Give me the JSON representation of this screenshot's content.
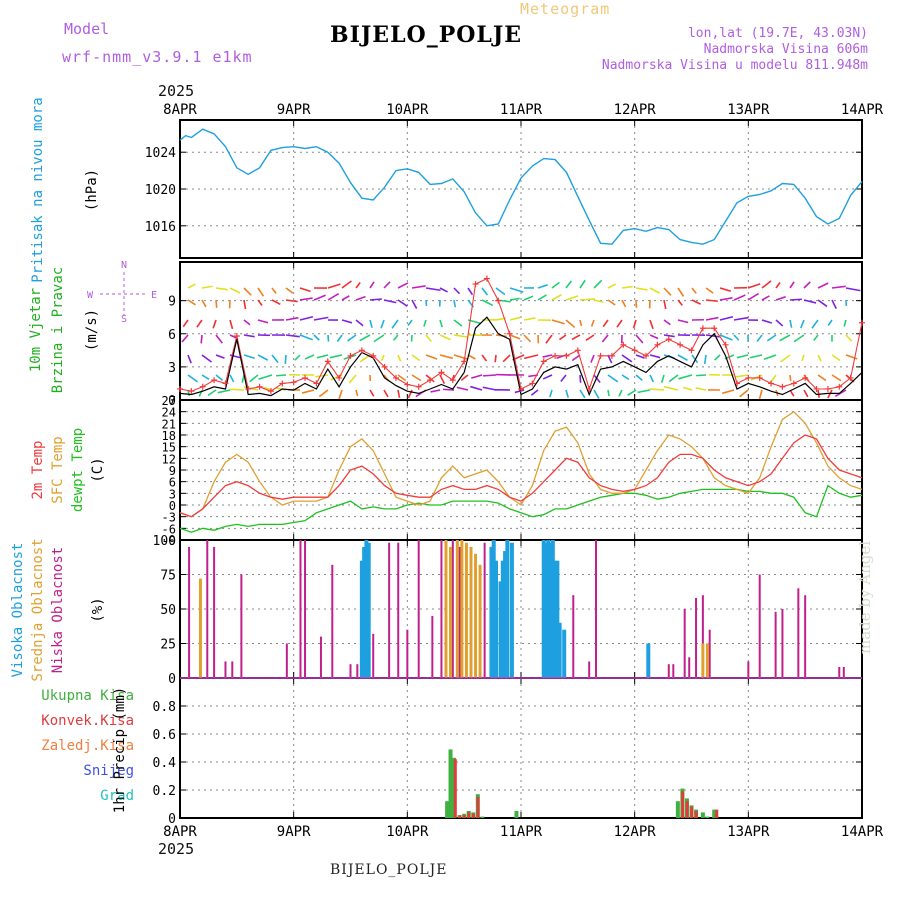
{
  "header": {
    "model_label": "Model",
    "model_name": "wrf-nmm_v3.9.1 e1km",
    "station_title": "BIJELO_POLJE",
    "meteogram_label": "Meteogram",
    "coords": "lon,lat (19.7E, 43.03N)",
    "elevation": "Nadmorska Visina 606m",
    "model_elevation": "Nadmorska Visina u modelu 811.948m"
  },
  "footer": {
    "station": "BIJELO_POLJE",
    "watermark": "made by Angel"
  },
  "colors": {
    "pressure": "#1ea0e0",
    "temp2m": "#f03c3c",
    "sfc": "#e0a030",
    "dewpt": "#20c020",
    "high_cloud": "#1ea0e0",
    "mid_cloud": "#e0a030",
    "low_cloud": "#c0208c",
    "total_precip": "#40b040",
    "conv_precip": "#e03c3c",
    "frz_precip": "#f08040",
    "snow": "#4050e0",
    "grad": "#20c0c0",
    "wind_speed": "#000000",
    "gust": "#f03c3c"
  },
  "chart_data": [
    {
      "type": "line",
      "panel": "pressure",
      "ylabel": [
        "Pritisak na nivou mora",
        "(hPa)"
      ],
      "ylim": [
        1012.5,
        1027.5
      ],
      "yticks": [
        1016,
        1020,
        1024
      ],
      "x": [
        0,
        0.05,
        0.1,
        0.2,
        0.3,
        0.4,
        0.5,
        0.6,
        0.7,
        0.8,
        0.9,
        1.0,
        1.1,
        1.2,
        1.3,
        1.4,
        1.5,
        1.6,
        1.7,
        1.8,
        1.9,
        2.0,
        2.1,
        2.2,
        2.3,
        2.4,
        2.5,
        2.6,
        2.7,
        2.8,
        2.9,
        3.0,
        3.1,
        3.2,
        3.3,
        3.4,
        3.5,
        3.6,
        3.7,
        3.8,
        3.9,
        4.0,
        4.1,
        4.2,
        4.3,
        4.4,
        4.5,
        4.6,
        4.7,
        4.8,
        4.9,
        5.0,
        5.1,
        5.2,
        5.3,
        5.4,
        5.5,
        5.6,
        5.7,
        5.8,
        5.9,
        6.0
      ],
      "series": [
        {
          "values": [
            1025.3,
            1025.8,
            1025.6,
            1026.5,
            1026.0,
            1024.6,
            1022.3,
            1021.6,
            1022.3,
            1024.2,
            1024.5,
            1024.6,
            1024.4,
            1024.6,
            1024.0,
            1022.8,
            1020.7,
            1019.0,
            1018.8,
            1020.2,
            1022.0,
            1022.2,
            1021.8,
            1020.5,
            1020.6,
            1021.1,
            1019.7,
            1017.4,
            1016.0,
            1016.2,
            1018.8,
            1021.2,
            1022.5,
            1023.3,
            1023.2,
            1021.8,
            1019.2,
            1016.6,
            1014.1,
            1014.0,
            1015.5,
            1015.7,
            1015.4,
            1015.8,
            1015.6,
            1014.5,
            1014.2,
            1014.0,
            1014.5,
            1016.5,
            1018.5,
            1019.2,
            1019.4,
            1019.8,
            1020.6,
            1020.5,
            1019.0,
            1017.0,
            1016.2,
            1016.8,
            1019.3,
            1020.8
          ]
        }
      ]
    },
    {
      "type": "line",
      "panel": "wind",
      "ylabel": [
        "10m Vjetar",
        "Brzina i Pravac",
        "(m/s)"
      ],
      "compass": {
        "n": "N",
        "s": "S",
        "w": "W",
        "e": "E"
      },
      "ylim": [
        0,
        12.5
      ],
      "yticks": [
        0,
        3,
        6,
        9
      ],
      "x": [
        0,
        0.1,
        0.2,
        0.3,
        0.4,
        0.5,
        0.6,
        0.7,
        0.8,
        0.9,
        1.0,
        1.1,
        1.2,
        1.3,
        1.4,
        1.5,
        1.6,
        1.7,
        1.8,
        1.9,
        2.0,
        2.1,
        2.2,
        2.3,
        2.4,
        2.5,
        2.6,
        2.7,
        2.8,
        2.9,
        3.0,
        3.1,
        3.2,
        3.3,
        3.4,
        3.5,
        3.6,
        3.7,
        3.8,
        3.9,
        4.0,
        4.1,
        4.2,
        4.3,
        4.4,
        4.5,
        4.6,
        4.7,
        4.8,
        4.9,
        5.0,
        5.1,
        5.2,
        5.3,
        5.4,
        5.5,
        5.6,
        5.7,
        5.8,
        5.9,
        6.0
      ],
      "series": [
        {
          "name": "speed",
          "values": [
            0.6,
            0.5,
            0.8,
            1.2,
            1.0,
            5.5,
            0.5,
            0.6,
            0.4,
            1.0,
            0.9,
            1.5,
            1.0,
            2.8,
            1.2,
            3.0,
            4.3,
            3.8,
            2.0,
            1.3,
            0.8,
            0.6,
            1.0,
            1.4,
            1.0,
            2.5,
            6.5,
            7.5,
            6.0,
            5.5,
            0.5,
            1.0,
            2.5,
            3.0,
            2.8,
            3.2,
            0.5,
            2.8,
            3.0,
            3.5,
            3.0,
            2.5,
            3.5,
            4.0,
            3.5,
            3.0,
            5.0,
            6.0,
            4.0,
            1.0,
            1.5,
            1.2,
            0.8,
            0.5,
            1.0,
            1.5,
            0.5,
            0.6,
            0.6,
            1.5,
            2.5
          ]
        },
        {
          "name": "gust",
          "values": [
            1.0,
            0.8,
            1.2,
            1.8,
            1.5,
            5.8,
            1.0,
            1.2,
            0.8,
            1.5,
            1.6,
            2.0,
            1.5,
            3.5,
            2.0,
            4.0,
            4.5,
            4.0,
            3.0,
            2.0,
            1.4,
            1.2,
            1.8,
            2.5,
            1.8,
            3.5,
            10.5,
            11.0,
            9.0,
            6.0,
            1.0,
            1.5,
            3.5,
            4.0,
            4.0,
            4.5,
            1.0,
            4.0,
            4.0,
            5.0,
            4.5,
            4.0,
            5.0,
            5.5,
            5.0,
            4.5,
            6.5,
            6.5,
            5.0,
            1.5,
            2.0,
            2.0,
            1.5,
            1.2,
            1.5,
            2.0,
            1.0,
            1.0,
            1.2,
            2.0,
            7.0
          ]
        }
      ]
    },
    {
      "type": "line",
      "panel": "temperature",
      "ylabel": [
        "2m Temp",
        "SFC Temp",
        "dewpt Temp",
        "(C)"
      ],
      "ylim": [
        -9,
        27
      ],
      "yticks": [
        -9,
        -6,
        -3,
        0,
        3,
        6,
        9,
        12,
        15,
        18,
        21,
        24,
        27
      ],
      "x": [
        0,
        0.1,
        0.2,
        0.3,
        0.4,
        0.5,
        0.6,
        0.7,
        0.8,
        0.9,
        1.0,
        1.1,
        1.2,
        1.3,
        1.4,
        1.5,
        1.6,
        1.7,
        1.8,
        1.9,
        2.0,
        2.1,
        2.2,
        2.3,
        2.4,
        2.5,
        2.6,
        2.7,
        2.8,
        2.9,
        3.0,
        3.1,
        3.2,
        3.3,
        3.4,
        3.5,
        3.6,
        3.7,
        3.8,
        3.9,
        4.0,
        4.1,
        4.2,
        4.3,
        4.4,
        4.5,
        4.6,
        4.7,
        4.8,
        4.9,
        5.0,
        5.1,
        5.2,
        5.3,
        5.4,
        5.5,
        5.6,
        5.7,
        5.8,
        5.9,
        6.0
      ],
      "series": [
        {
          "name": "2m Temp",
          "values": [
            -2,
            -3,
            -1,
            2,
            5,
            6,
            5,
            3,
            2,
            1.5,
            2,
            2,
            2,
            2,
            5,
            9,
            10,
            8,
            5,
            3,
            2.5,
            2,
            2,
            4,
            5,
            4,
            4,
            5,
            4,
            2,
            1,
            3,
            6,
            9,
            12,
            11,
            7,
            5,
            4,
            3.5,
            4,
            5,
            7,
            11,
            13,
            13,
            12,
            9,
            7,
            6,
            5,
            6,
            8,
            12,
            16,
            18,
            17,
            12,
            9,
            8,
            7
          ]
        },
        {
          "name": "SFC Temp",
          "values": [
            -2,
            -3,
            -1,
            6,
            11,
            13,
            11,
            6,
            2,
            0,
            1,
            1,
            1,
            2,
            9,
            15,
            17,
            14,
            8,
            2,
            1,
            0,
            1,
            7,
            10,
            7,
            8,
            9,
            6,
            2,
            0,
            5,
            14,
            19,
            20,
            16,
            8,
            4,
            3,
            3,
            4,
            9,
            14,
            18,
            17,
            15,
            12,
            7,
            5,
            4,
            3,
            7,
            15,
            22,
            24,
            21,
            16,
            10,
            7,
            5,
            4
          ]
        },
        {
          "name": "dewpt Temp",
          "values": [
            -6,
            -7,
            -6,
            -6.5,
            -5.5,
            -5,
            -5.5,
            -5,
            -5,
            -5,
            -4.5,
            -4,
            -2,
            -1,
            0,
            1,
            -1,
            -0.5,
            -1,
            -1,
            0,
            0.5,
            0,
            0,
            1,
            1,
            1,
            1,
            0.5,
            -1,
            -2,
            -3,
            -2.5,
            -1,
            -1,
            0,
            1,
            2,
            2.5,
            3,
            3,
            2.5,
            1.5,
            2,
            3,
            3.5,
            4,
            4,
            4,
            4,
            3.5,
            3.5,
            3,
            3,
            2,
            -2,
            -3,
            5,
            3,
            2,
            2.5
          ]
        }
      ]
    },
    {
      "type": "bar",
      "panel": "cloud",
      "ylabel": [
        "Visoka Oblacnost",
        "Srednja Oblacnost",
        "Niska Oblacnost",
        "(%)"
      ],
      "ylim": [
        0,
        100
      ],
      "yticks": [
        0,
        25,
        50,
        75,
        100
      ],
      "series": [
        {
          "name": "Visoka Oblacnost",
          "x": [
            1.6,
            1.62,
            1.64,
            1.66,
            2.74,
            2.76,
            2.78,
            2.82,
            2.84,
            2.86,
            2.88,
            2.92,
            3.2,
            3.22,
            3.24,
            3.26,
            3.28,
            3.3,
            3.32,
            3.34,
            3.38,
            4.12
          ],
          "values": [
            85,
            95,
            100,
            98,
            95,
            100,
            85,
            70,
            85,
            92,
            100,
            98,
            100,
            98,
            100,
            98,
            100,
            85,
            85,
            40,
            35,
            25
          ]
        },
        {
          "name": "Srednja Oblacnost",
          "x": [
            0.18,
            2.34,
            2.38,
            2.44,
            2.48,
            2.52,
            2.56,
            2.6,
            2.64,
            4.6,
            4.64
          ],
          "values": [
            72,
            100,
            95,
            100,
            100,
            98,
            95,
            90,
            82,
            25,
            25
          ]
        },
        {
          "name": "Niska Oblacnost",
          "x": [
            0.08,
            0.24,
            0.3,
            0.4,
            0.46,
            0.54,
            0.94,
            1.06,
            1.1,
            1.24,
            1.34,
            1.5,
            1.56,
            1.7,
            1.84,
            1.92,
            2.0,
            2.1,
            2.22,
            2.3,
            2.4,
            2.46,
            2.68,
            2.74,
            3.46,
            3.6,
            3.66,
            4.3,
            4.34,
            4.44,
            4.48,
            4.54,
            4.6,
            4.66,
            5.0,
            5.1,
            5.24,
            5.3,
            5.44,
            5.5,
            5.8,
            5.84
          ]
        },
        {
          "values_low": [
            95,
            100,
            95,
            12,
            12,
            75,
            25,
            100,
            100,
            30,
            82,
            10,
            10,
            32,
            98,
            98,
            35,
            100,
            45,
            100,
            100,
            95,
            98,
            95,
            60,
            12,
            100,
            10,
            10,
            50,
            15,
            58,
            60,
            35,
            12,
            75,
            48,
            50,
            65,
            60,
            8,
            8
          ]
        }
      ]
    },
    {
      "type": "bar",
      "panel": "precip",
      "ylabel": [
        "Ukupna Kisa",
        "Konvek.Kisa",
        "Zaledj.Kisa",
        "Snijeg",
        "Grad",
        "1hr Precip (mm)"
      ],
      "ylim": [
        0,
        1.0
      ],
      "yticks": [
        0,
        0.2,
        0.4,
        0.6,
        0.8
      ],
      "series": [
        {
          "name": "Ukupna Kisa",
          "x": [
            2.35,
            2.38,
            2.41,
            2.46,
            2.5,
            2.54,
            2.58,
            2.62,
            2.66,
            2.96,
            4.38,
            4.42,
            4.46,
            4.5,
            4.54,
            4.6,
            4.64,
            4.7
          ],
          "values": [
            0.12,
            0.49,
            0.43,
            0.02,
            0.03,
            0.05,
            0.04,
            0.17,
            0.01,
            0.05,
            0.12,
            0.21,
            0.14,
            0.09,
            0.06,
            0.04,
            0.01,
            0.06
          ]
        },
        {
          "name": "Konvek.Kisa",
          "x": [
            2.4,
            2.44,
            2.48,
            2.52,
            2.56,
            2.6,
            4.4,
            4.44,
            4.48,
            4.52,
            4.7
          ],
          "values": [
            0.42,
            0.02,
            0.02,
            0.04,
            0.03,
            0.15,
            0.19,
            0.12,
            0.08,
            0.05,
            0.06
          ]
        }
      ]
    }
  ],
  "xaxis": {
    "labels": [
      "8APR",
      "9APR",
      "10APR",
      "11APR",
      "12APR",
      "13APR",
      "14APR"
    ],
    "year": "2025"
  }
}
